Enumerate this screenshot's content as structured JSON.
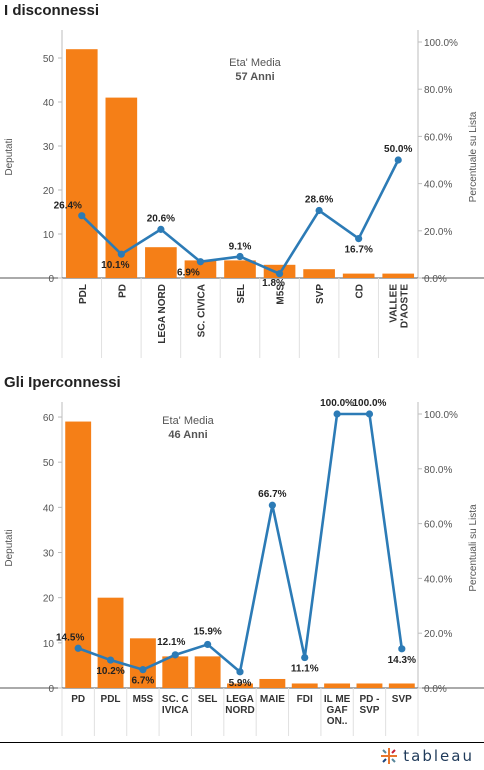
{
  "chart_data": [
    {
      "type": "bar",
      "title": "I disconnessi",
      "annotation_label": "Eta' Media",
      "annotation_value": "57 Anni",
      "ylabel": "Deputati",
      "y2label": "Percentuale su Lista",
      "ylim": [
        0,
        55
      ],
      "y2lim": [
        0,
        1
      ],
      "yticks": [
        "0",
        "10",
        "20",
        "30",
        "40",
        "50"
      ],
      "y2ticks": [
        "0.0%",
        "20.0%",
        "40.0%",
        "60.0%",
        "80.0%",
        "100.0%"
      ],
      "categories": [
        [
          "PDL"
        ],
        [
          "PD"
        ],
        [
          "LEGA NORD"
        ],
        [
          "SC. CIVICA"
        ],
        [
          "SEL"
        ],
        [
          "M5S"
        ],
        [
          "SVP"
        ],
        [
          "CD"
        ],
        [
          "VALLEE",
          "D'AOSTE"
        ]
      ],
      "series": [
        {
          "name": "Deputati",
          "kind": "bar",
          "color": "#f57f17",
          "values": [
            52,
            41,
            7,
            4,
            4,
            3,
            2,
            1,
            1
          ]
        },
        {
          "name": "Percentuale su Lista",
          "kind": "line",
          "color": "#2c7bb6",
          "values": [
            26.4,
            10.1,
            20.6,
            6.9,
            9.1,
            1.8,
            28.6,
            16.7,
            50.0
          ],
          "labels": [
            "26.4%",
            "10.1%",
            "20.6%",
            "6.9%",
            "9.1%",
            "1.8%",
            "28.6%",
            "16.7%",
            "50.0%"
          ]
        }
      ]
    },
    {
      "type": "bar",
      "title": "Gli Iperconnessi",
      "annotation_label": "Eta' Media",
      "annotation_value": "46 Anni",
      "ylabel": "Deputati",
      "y2label": "Percentuali su Lista",
      "ylim": [
        0,
        62
      ],
      "y2lim": [
        0,
        1
      ],
      "yticks": [
        "0",
        "10",
        "20",
        "30",
        "40",
        "50",
        "60"
      ],
      "y2ticks": [
        "0.0%",
        "20.0%",
        "40.0%",
        "60.0%",
        "80.0%",
        "100.0%"
      ],
      "categories": [
        [
          "PD"
        ],
        [
          "PDL"
        ],
        [
          "M5S"
        ],
        [
          "SC. C",
          "IVICA"
        ],
        [
          "SEL"
        ],
        [
          "LEGA",
          "NORD"
        ],
        [
          "MAIE"
        ],
        [
          "FDI"
        ],
        [
          "IL ME",
          "GAF",
          "ON.."
        ],
        [
          "PD -",
          "SVP"
        ],
        [
          "SVP"
        ]
      ],
      "series": [
        {
          "name": "Deputati",
          "kind": "bar",
          "color": "#f57f17",
          "values": [
            59,
            20,
            11,
            7,
            7,
            1,
            2,
            1,
            1,
            1,
            1
          ]
        },
        {
          "name": "Percentuali su Lista",
          "kind": "line",
          "color": "#2c7bb6",
          "values": [
            14.5,
            10.2,
            6.7,
            12.1,
            15.9,
            5.9,
            66.7,
            11.1,
            100.0,
            100.0,
            14.3
          ],
          "labels": [
            "14.5%",
            "10.2%",
            "6.7%",
            "12.1%",
            "15.9%",
            "5.9%",
            "66.7%",
            "11.1%",
            "100.0%",
            "100.0%",
            "14.3%"
          ]
        }
      ]
    }
  ],
  "footer": {
    "brand": "tableau"
  }
}
